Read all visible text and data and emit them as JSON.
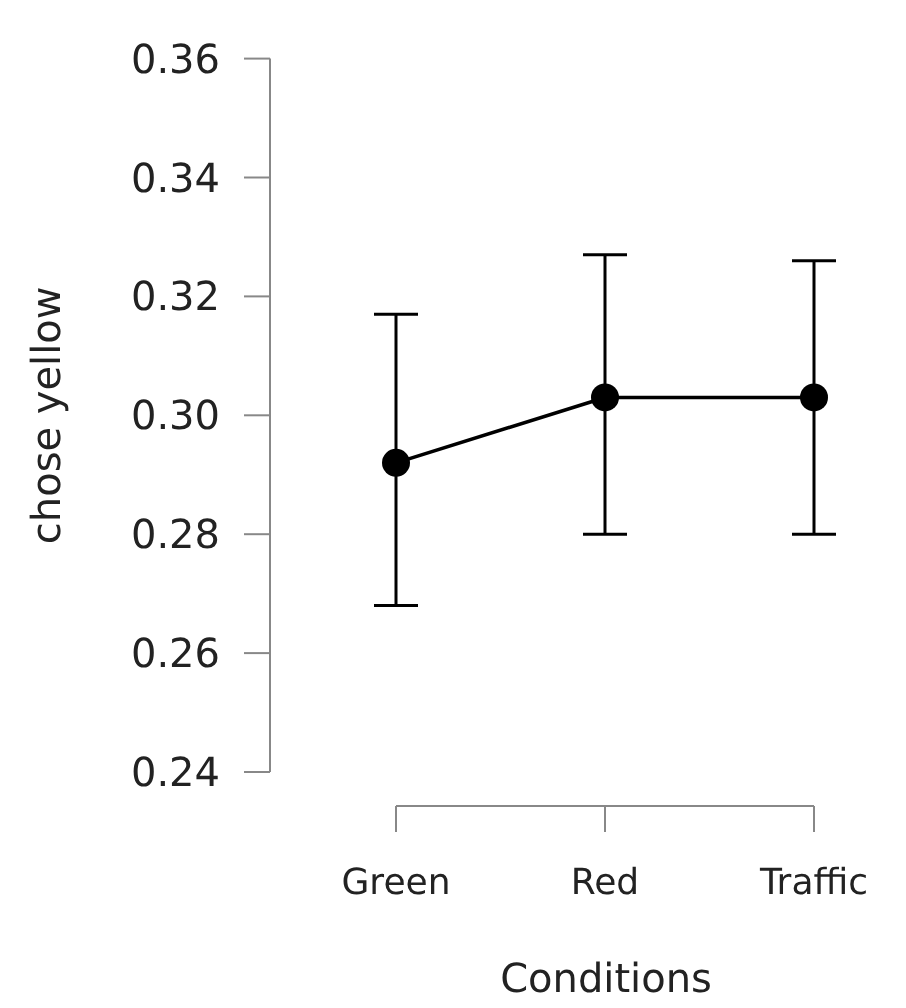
{
  "chart_data": {
    "type": "line",
    "xlabel": "Conditions",
    "ylabel": "chose yellow",
    "categories": [
      "Green",
      "Red",
      "Traffic"
    ],
    "series": [
      {
        "color": "#000000",
        "values": [
          0.292,
          0.303,
          0.303
        ],
        "errors": [
          [
            0.268,
            0.317
          ],
          [
            0.28,
            0.327
          ],
          [
            0.28,
            0.326
          ]
        ]
      }
    ],
    "ylim": [
      0.24,
      0.36
    ],
    "yticks": [
      0.24,
      0.26,
      0.28,
      {
        "value": 0.3,
        "label": "0.30"
      },
      0.32,
      0.34,
      0.36
    ],
    "marker": "circle",
    "line_style": "solid",
    "grid": false
  }
}
